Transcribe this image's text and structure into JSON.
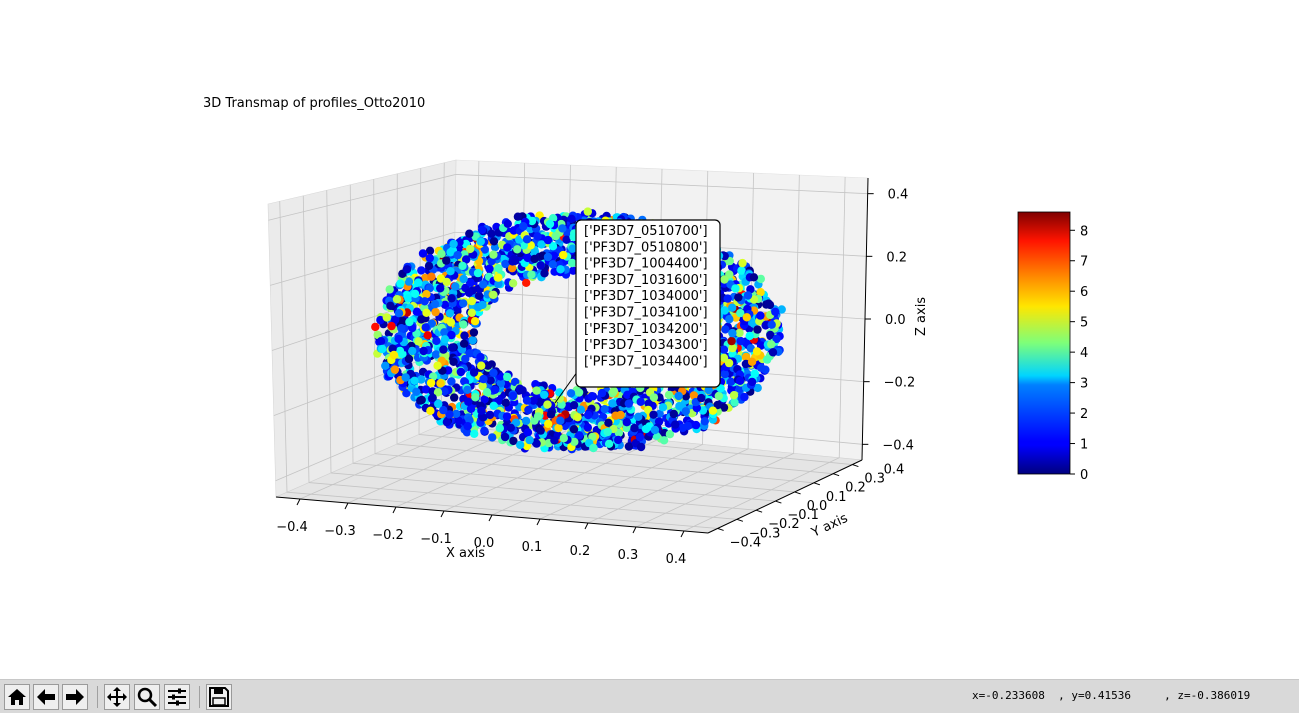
{
  "chart_data": {
    "type": "scatter",
    "subtype": "3d",
    "title": "3D Transmap of profiles_Otto2010",
    "xlabel": "X axis",
    "ylabel": "Y axis",
    "zlabel": "Z axis",
    "xlim": [
      -0.45,
      0.45
    ],
    "ylim": [
      -0.45,
      0.35
    ],
    "zlim": [
      -0.45,
      0.45
    ],
    "x_ticks": [
      "−0.4",
      "−0.3",
      "−0.2",
      "−0.1",
      "0.0",
      "0.1",
      "0.2",
      "0.3",
      "0.4"
    ],
    "y_ticks": [
      "−0.4",
      "−0.3",
      "−0.2",
      "−0.1",
      "0.0",
      "0.1",
      "0.2",
      "0.3",
      "0.4"
    ],
    "z_ticks": [
      "−0.4",
      "−0.2",
      "0.0",
      "0.2",
      "0.4"
    ],
    "grid": true,
    "colormap": "jet",
    "color_range": [
      0,
      8.6
    ],
    "colorbar_ticks": [
      "0",
      "1",
      "2",
      "3",
      "4",
      "5",
      "6",
      "7",
      "8"
    ],
    "point_distribution": "ellipsoidal shell, center (0,0,0), radius ~0.4, approx 5000 points",
    "annotation": {
      "lines": [
        "['PF3D7_0510700']",
        "['PF3D7_0510800']",
        "['PF3D7_1004400']",
        "['PF3D7_1031600']",
        "['PF3D7_1034000']",
        "['PF3D7_1034100']",
        "['PF3D7_1034200']",
        "['PF3D7_1034300']",
        "['PF3D7_1034400']"
      ]
    }
  },
  "toolbar": {
    "buttons": [
      {
        "icon": "home-icon",
        "label": "Home"
      },
      {
        "icon": "back-arrow-icon",
        "label": "Back"
      },
      {
        "icon": "forward-arrow-icon",
        "label": "Forward"
      },
      {
        "icon": "pan-icon",
        "label": "Pan"
      },
      {
        "icon": "zoom-icon",
        "label": "Zoom"
      },
      {
        "icon": "configure-subplots-icon",
        "label": "Subplots"
      },
      {
        "icon": "save-icon",
        "label": "Save"
      }
    ],
    "coords": {
      "x": "x=-0.233608",
      "y": ", y=0.41536",
      "z": ", z=-0.386019"
    }
  }
}
